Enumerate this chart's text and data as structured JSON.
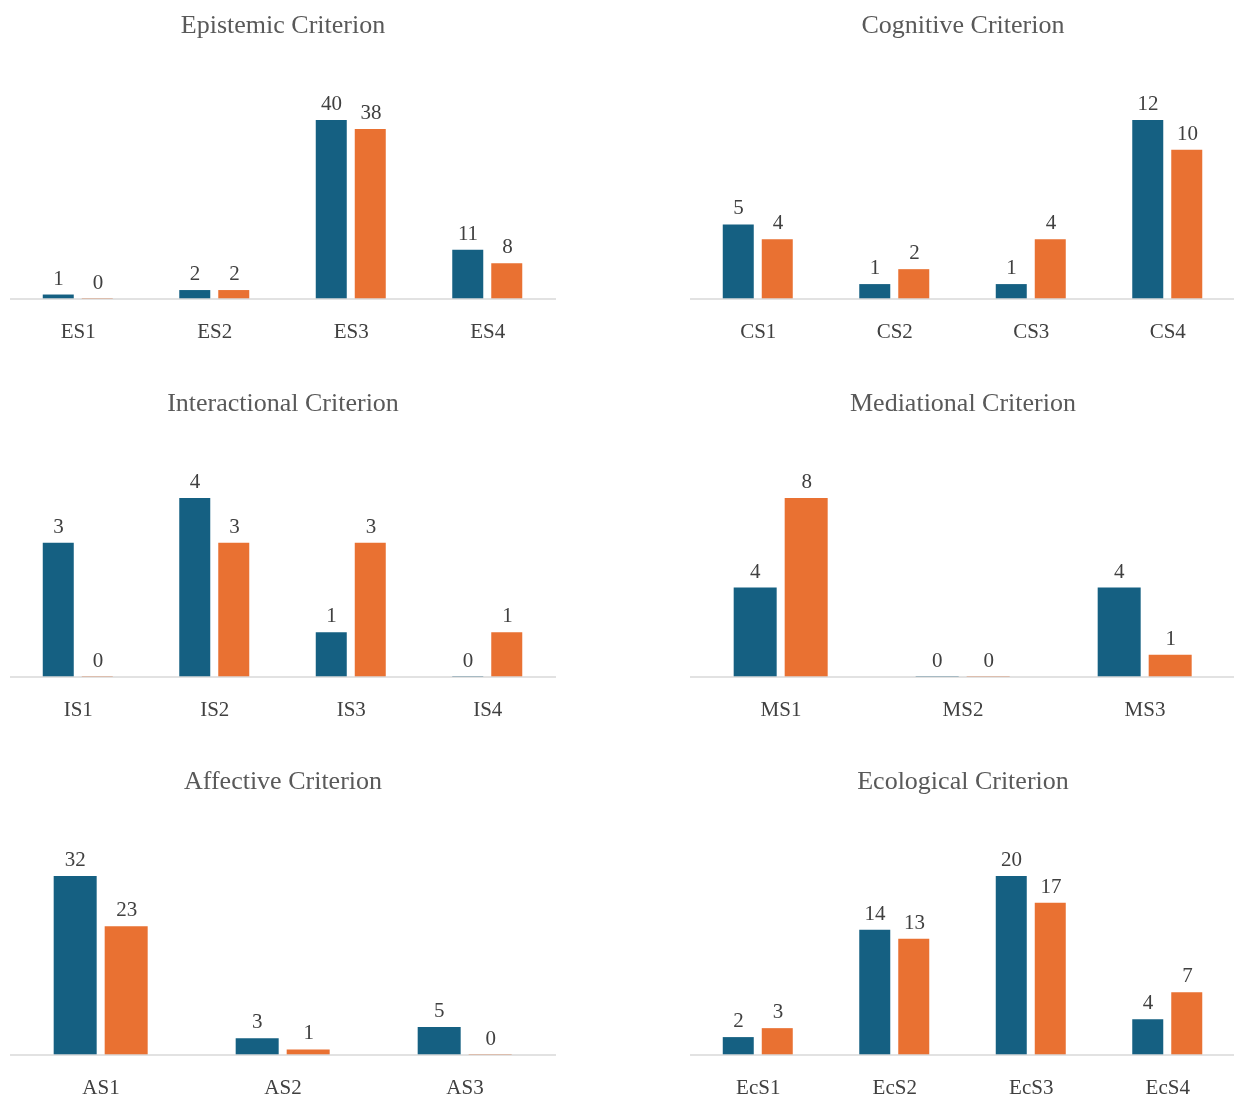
{
  "chart_data": [
    {
      "type": "bar",
      "title": "Epistemic Criterion",
      "categories": [
        "ES1",
        "ES2",
        "ES3",
        "ES4"
      ],
      "series": [
        {
          "color": "#156082",
          "values": [
            1,
            2,
            40,
            11
          ]
        },
        {
          "color": "#e97132",
          "values": [
            0,
            2,
            38,
            8
          ]
        }
      ],
      "data_labels": true,
      "tick_labels": "x"
    },
    {
      "type": "bar",
      "title": "Cognitive Criterion",
      "categories": [
        "CS1",
        "CS2",
        "CS3",
        "CS4"
      ],
      "series": [
        {
          "color": "#156082",
          "values": [
            5,
            1,
            1,
            12
          ]
        },
        {
          "color": "#e97132",
          "values": [
            4,
            2,
            4,
            10
          ]
        }
      ],
      "data_labels": true,
      "tick_labels": "x"
    },
    {
      "type": "bar",
      "title": "Interactional Criterion",
      "categories": [
        "IS1",
        "IS2",
        "IS3",
        "IS4"
      ],
      "series": [
        {
          "color": "#156082",
          "values": [
            3,
            4,
            1,
            0
          ]
        },
        {
          "color": "#e97132",
          "values": [
            0,
            3,
            3,
            1
          ]
        }
      ],
      "data_labels": true,
      "tick_labels": "x"
    },
    {
      "type": "bar",
      "title": "Mediational Criterion",
      "categories": [
        "MS1",
        "MS2",
        "MS3"
      ],
      "series": [
        {
          "color": "#156082",
          "values": [
            4,
            0,
            4
          ]
        },
        {
          "color": "#e97132",
          "values": [
            8,
            0,
            1
          ]
        }
      ],
      "data_labels": true,
      "tick_labels": "x"
    },
    {
      "type": "bar",
      "title": "Affective Criterion",
      "categories": [
        "AS1",
        "AS2",
        "AS3"
      ],
      "series": [
        {
          "color": "#156082",
          "values": [
            32,
            3,
            5
          ]
        },
        {
          "color": "#e97132",
          "values": [
            23,
            1,
            0
          ]
        }
      ],
      "data_labels": true,
      "tick_labels": "x"
    },
    {
      "type": "bar",
      "title": "Ecological Criterion",
      "categories": [
        "EcS1",
        "EcS2",
        "EcS3",
        "EcS4"
      ],
      "series": [
        {
          "color": "#156082",
          "values": [
            2,
            14,
            20,
            4
          ]
        },
        {
          "color": "#e97132",
          "values": [
            3,
            13,
            17,
            7
          ]
        }
      ],
      "data_labels": true,
      "tick_labels": "x"
    }
  ]
}
